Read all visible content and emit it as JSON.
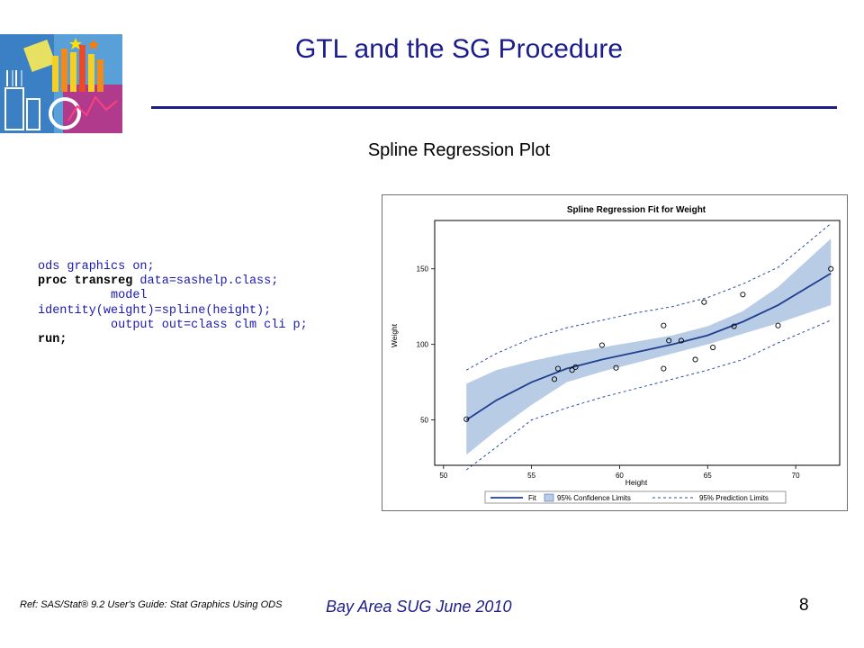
{
  "slide": {
    "title": "GTL and the SG Procedure",
    "subtitle": "Spline Regression Plot",
    "logo_icon": "stats-collage-logo-icon",
    "code": {
      "line1": "ods graphics on;",
      "line2_kw": "proc transreg",
      "line2_rest": " data=sashelp.class;",
      "line3": "          model",
      "line4": "identity(weight)=spline(height);",
      "line5": "          output out=class clm cli p;",
      "line6": "run;"
    },
    "footer": {
      "reference": "Ref: SAS/Stat® 9.2 User's Guide: Stat Graphics Using ODS",
      "event": "Bay Area SUG June 2010",
      "page_number": "8"
    }
  },
  "chart_data": {
    "type": "scatter",
    "title": "Spline Regression Fit for Weight",
    "xlabel": "Height",
    "ylabel": "Weight",
    "xlim": [
      49.5,
      72.5
    ],
    "ylim": [
      20,
      182
    ],
    "x_ticks": [
      "50",
      "55",
      "60",
      "65",
      "70"
    ],
    "y_ticks": [
      "50",
      "100",
      "150"
    ],
    "x_tick_values": [
      50,
      55,
      60,
      65,
      70
    ],
    "y_tick_values": [
      50,
      100,
      150
    ],
    "legend": {
      "position": "bottom",
      "fit": "Fit",
      "clm": "95% Confidence Limits",
      "cli": "95% Prediction Limits"
    },
    "colors": {
      "fit": "#1f3f8f",
      "band": "#b8cce6",
      "points": "#000000",
      "prediction": "#2b4f9a"
    },
    "points": [
      {
        "x": 51.3,
        "y": 50.5
      },
      {
        "x": 56.3,
        "y": 77.0
      },
      {
        "x": 56.5,
        "y": 84.0
      },
      {
        "x": 57.3,
        "y": 83.0
      },
      {
        "x": 57.5,
        "y": 85.0
      },
      {
        "x": 59.0,
        "y": 99.5
      },
      {
        "x": 59.8,
        "y": 84.5
      },
      {
        "x": 62.5,
        "y": 112.5
      },
      {
        "x": 62.5,
        "y": 84.0
      },
      {
        "x": 62.8,
        "y": 102.5
      },
      {
        "x": 63.5,
        "y": 102.5
      },
      {
        "x": 64.3,
        "y": 90.0
      },
      {
        "x": 64.8,
        "y": 128.0
      },
      {
        "x": 65.3,
        "y": 98.0
      },
      {
        "x": 66.5,
        "y": 112.0
      },
      {
        "x": 67.0,
        "y": 133.0
      },
      {
        "x": 69.0,
        "y": 112.5
      },
      {
        "x": 72.0,
        "y": 150.0
      }
    ],
    "fit": {
      "x": [
        51.3,
        53,
        55,
        57,
        59,
        61,
        63,
        65,
        67,
        69,
        72
      ],
      "y": [
        50,
        63,
        75,
        84,
        90,
        95,
        100,
        106,
        115,
        126,
        147
      ]
    },
    "clm_lower": [
      27,
      43,
      60,
      75,
      82,
      88,
      94,
      100,
      107,
      114,
      126
    ],
    "clm_upper": [
      74,
      83,
      89,
      94,
      98,
      102,
      106,
      112,
      122,
      138,
      170
    ],
    "cli_lower": [
      17,
      32,
      50,
      58,
      65,
      71,
      77,
      83,
      90,
      101,
      116
    ],
    "cli_upper": [
      83,
      94,
      104,
      111,
      116,
      121,
      125,
      131,
      140,
      151,
      180
    ]
  }
}
